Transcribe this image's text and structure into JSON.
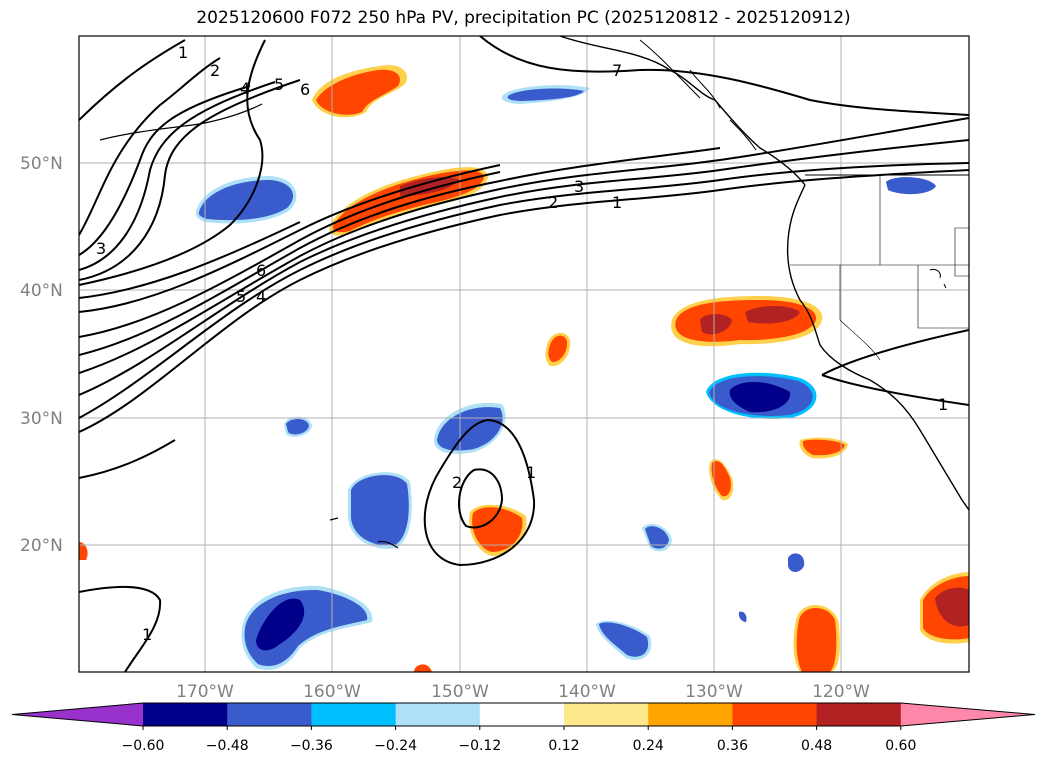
{
  "title": "2025120600 F072 250 hPa PV, precipitation PC (2025120812 - 2025120912)",
  "lat_labels": [
    "50°N",
    "40°N",
    "30°N",
    "20°N"
  ],
  "lon_labels": [
    "170°W",
    "160°W",
    "150°W",
    "140°W",
    "130°W",
    "120°W"
  ],
  "contour_labels": [
    "1",
    "2",
    "4",
    "5",
    "6",
    "7",
    "3",
    "2",
    "1",
    "3",
    "6",
    "5",
    "4",
    "2",
    "1",
    "1",
    "1"
  ],
  "colorbar": {
    "ticks": [
      "−0.60",
      "−0.48",
      "−0.36",
      "−0.24",
      "−0.12",
      "0.12",
      "0.24",
      "0.36",
      "0.48",
      "0.60"
    ],
    "colors": [
      "#9932cc",
      "#00008b",
      "#3a5bcc",
      "#00bfff",
      "#aee0f8",
      "#ffffff",
      "#fde98c",
      "#ffa500",
      "#ff4500",
      "#b22222",
      "#ff88aa"
    ]
  }
}
